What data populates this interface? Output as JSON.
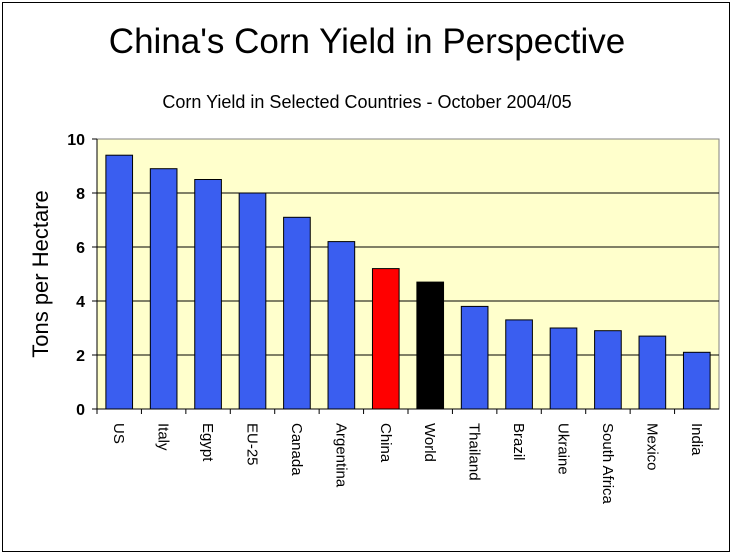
{
  "chart_data": {
    "type": "bar",
    "title": "China's Corn Yield in Perspective",
    "subtitle": "Corn Yield in Selected Countries - October 2004/05",
    "xlabel": "",
    "ylabel": "Tons per Hectare",
    "ylim": [
      0,
      10
    ],
    "yticks": [
      "0",
      "2",
      "4",
      "6",
      "8",
      "10"
    ],
    "grid": true,
    "categories": [
      "US",
      "Italy",
      "Egypt",
      "EU-25",
      "Canada",
      "Argentina",
      "China",
      "World",
      "Thailand",
      "Brazil",
      "Ukraine",
      "South Africa",
      "Mexico",
      "India"
    ],
    "values": [
      9.4,
      8.9,
      8.5,
      8.0,
      7.1,
      6.2,
      5.2,
      4.7,
      3.8,
      3.3,
      3.0,
      2.9,
      2.7,
      2.1
    ],
    "colors": {
      "default": "#3a5ef0",
      "China": "#ff0000",
      "World": "#000000",
      "plot_background": "#ffffcc"
    }
  }
}
